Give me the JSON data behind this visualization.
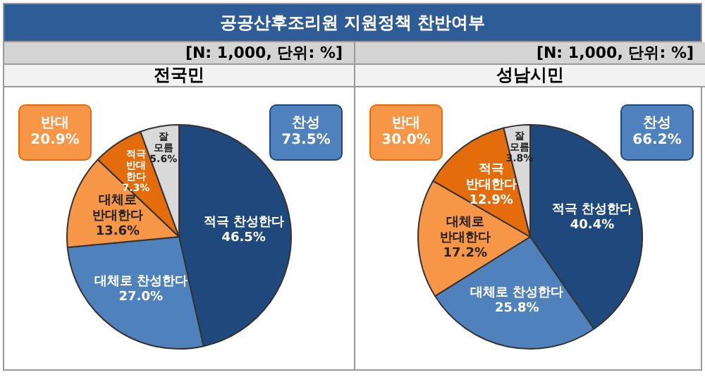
{
  "chart_data": [
    {
      "type": "other",
      "title": "공공산후조리원 지원정책 찬반여부"
    },
    {
      "type": "pie",
      "title": "전국민",
      "subtitle": "[N: 1,000, 단위: %]",
      "categories": [
        "적극 찬성한다",
        "대체로 찬성한다",
        "대체로 반대한다",
        "적극 반대한다",
        "잘 모름"
      ],
      "values": [
        46.5,
        27.0,
        13.6,
        7.3,
        5.6
      ],
      "value_labels": [
        "46.5%",
        "27.0%",
        "13.6%",
        "7.3%",
        "5.6%"
      ],
      "colors": [
        "#1f497d",
        "#4f81bd",
        "#f79646",
        "#e46c0a",
        "#d9d9d9"
      ],
      "annotations": [
        "반대 20.9%",
        "찬성 73.5%"
      ],
      "legend": false
    },
    {
      "type": "pie",
      "title": "성남시민",
      "subtitle": "[N: 1,000, 단위: %]",
      "categories": [
        "적극 찬성한다",
        "대체로 찬성한다",
        "대체로 반대한다",
        "적극 반대한다",
        "잘 모름"
      ],
      "values": [
        40.4,
        25.8,
        17.2,
        12.9,
        3.8
      ],
      "value_labels": [
        "40.4%",
        "25.8%",
        "17.2%",
        "12.9%",
        "3.8%"
      ],
      "colors": [
        "#1f497d",
        "#4f81bd",
        "#f79646",
        "#e46c0a",
        "#d9d9d9"
      ],
      "annotations": [
        "반대 30.0%",
        "찬성 66.2%"
      ],
      "legend": false
    }
  ]
}
